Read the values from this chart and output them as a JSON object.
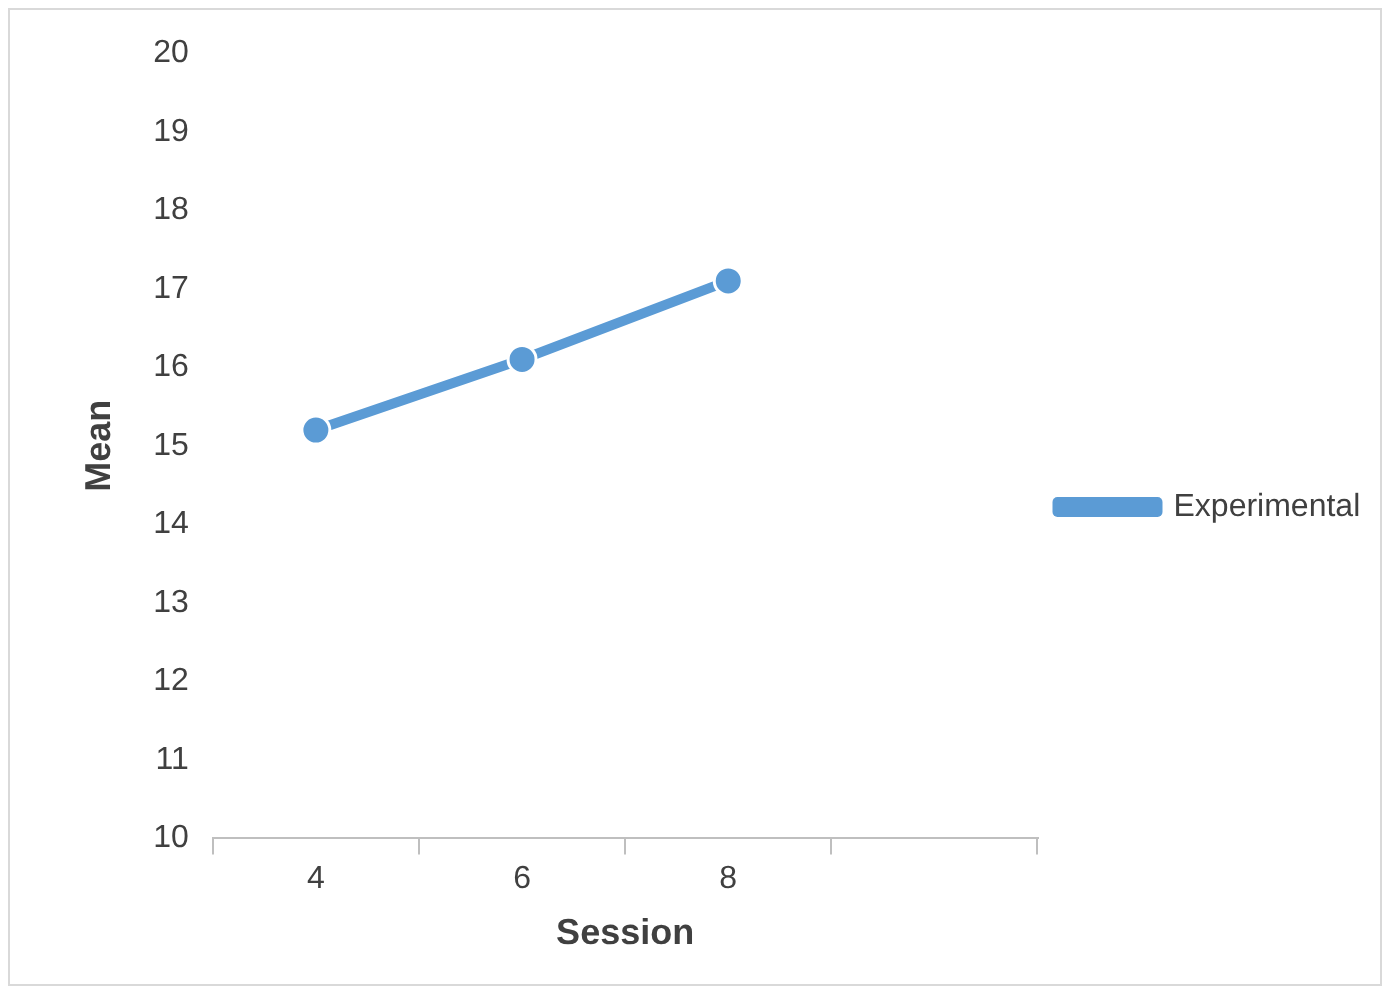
{
  "chart_data": {
    "type": "line",
    "xlabel": "Session",
    "ylabel": "Mean",
    "categories": [
      "4",
      "6",
      "8",
      null
    ],
    "series": [
      {
        "name": "Experimental",
        "color": "#5b9bd5",
        "values": [
          15.2,
          16.1,
          17.1,
          null
        ]
      }
    ],
    "ylim": [
      10,
      20
    ],
    "yticks": [
      10,
      11,
      12,
      13,
      14,
      15,
      16,
      17,
      18,
      19,
      20
    ],
    "grid": false,
    "legend": "right",
    "marker": "circle",
    "line_style": "solid"
  }
}
